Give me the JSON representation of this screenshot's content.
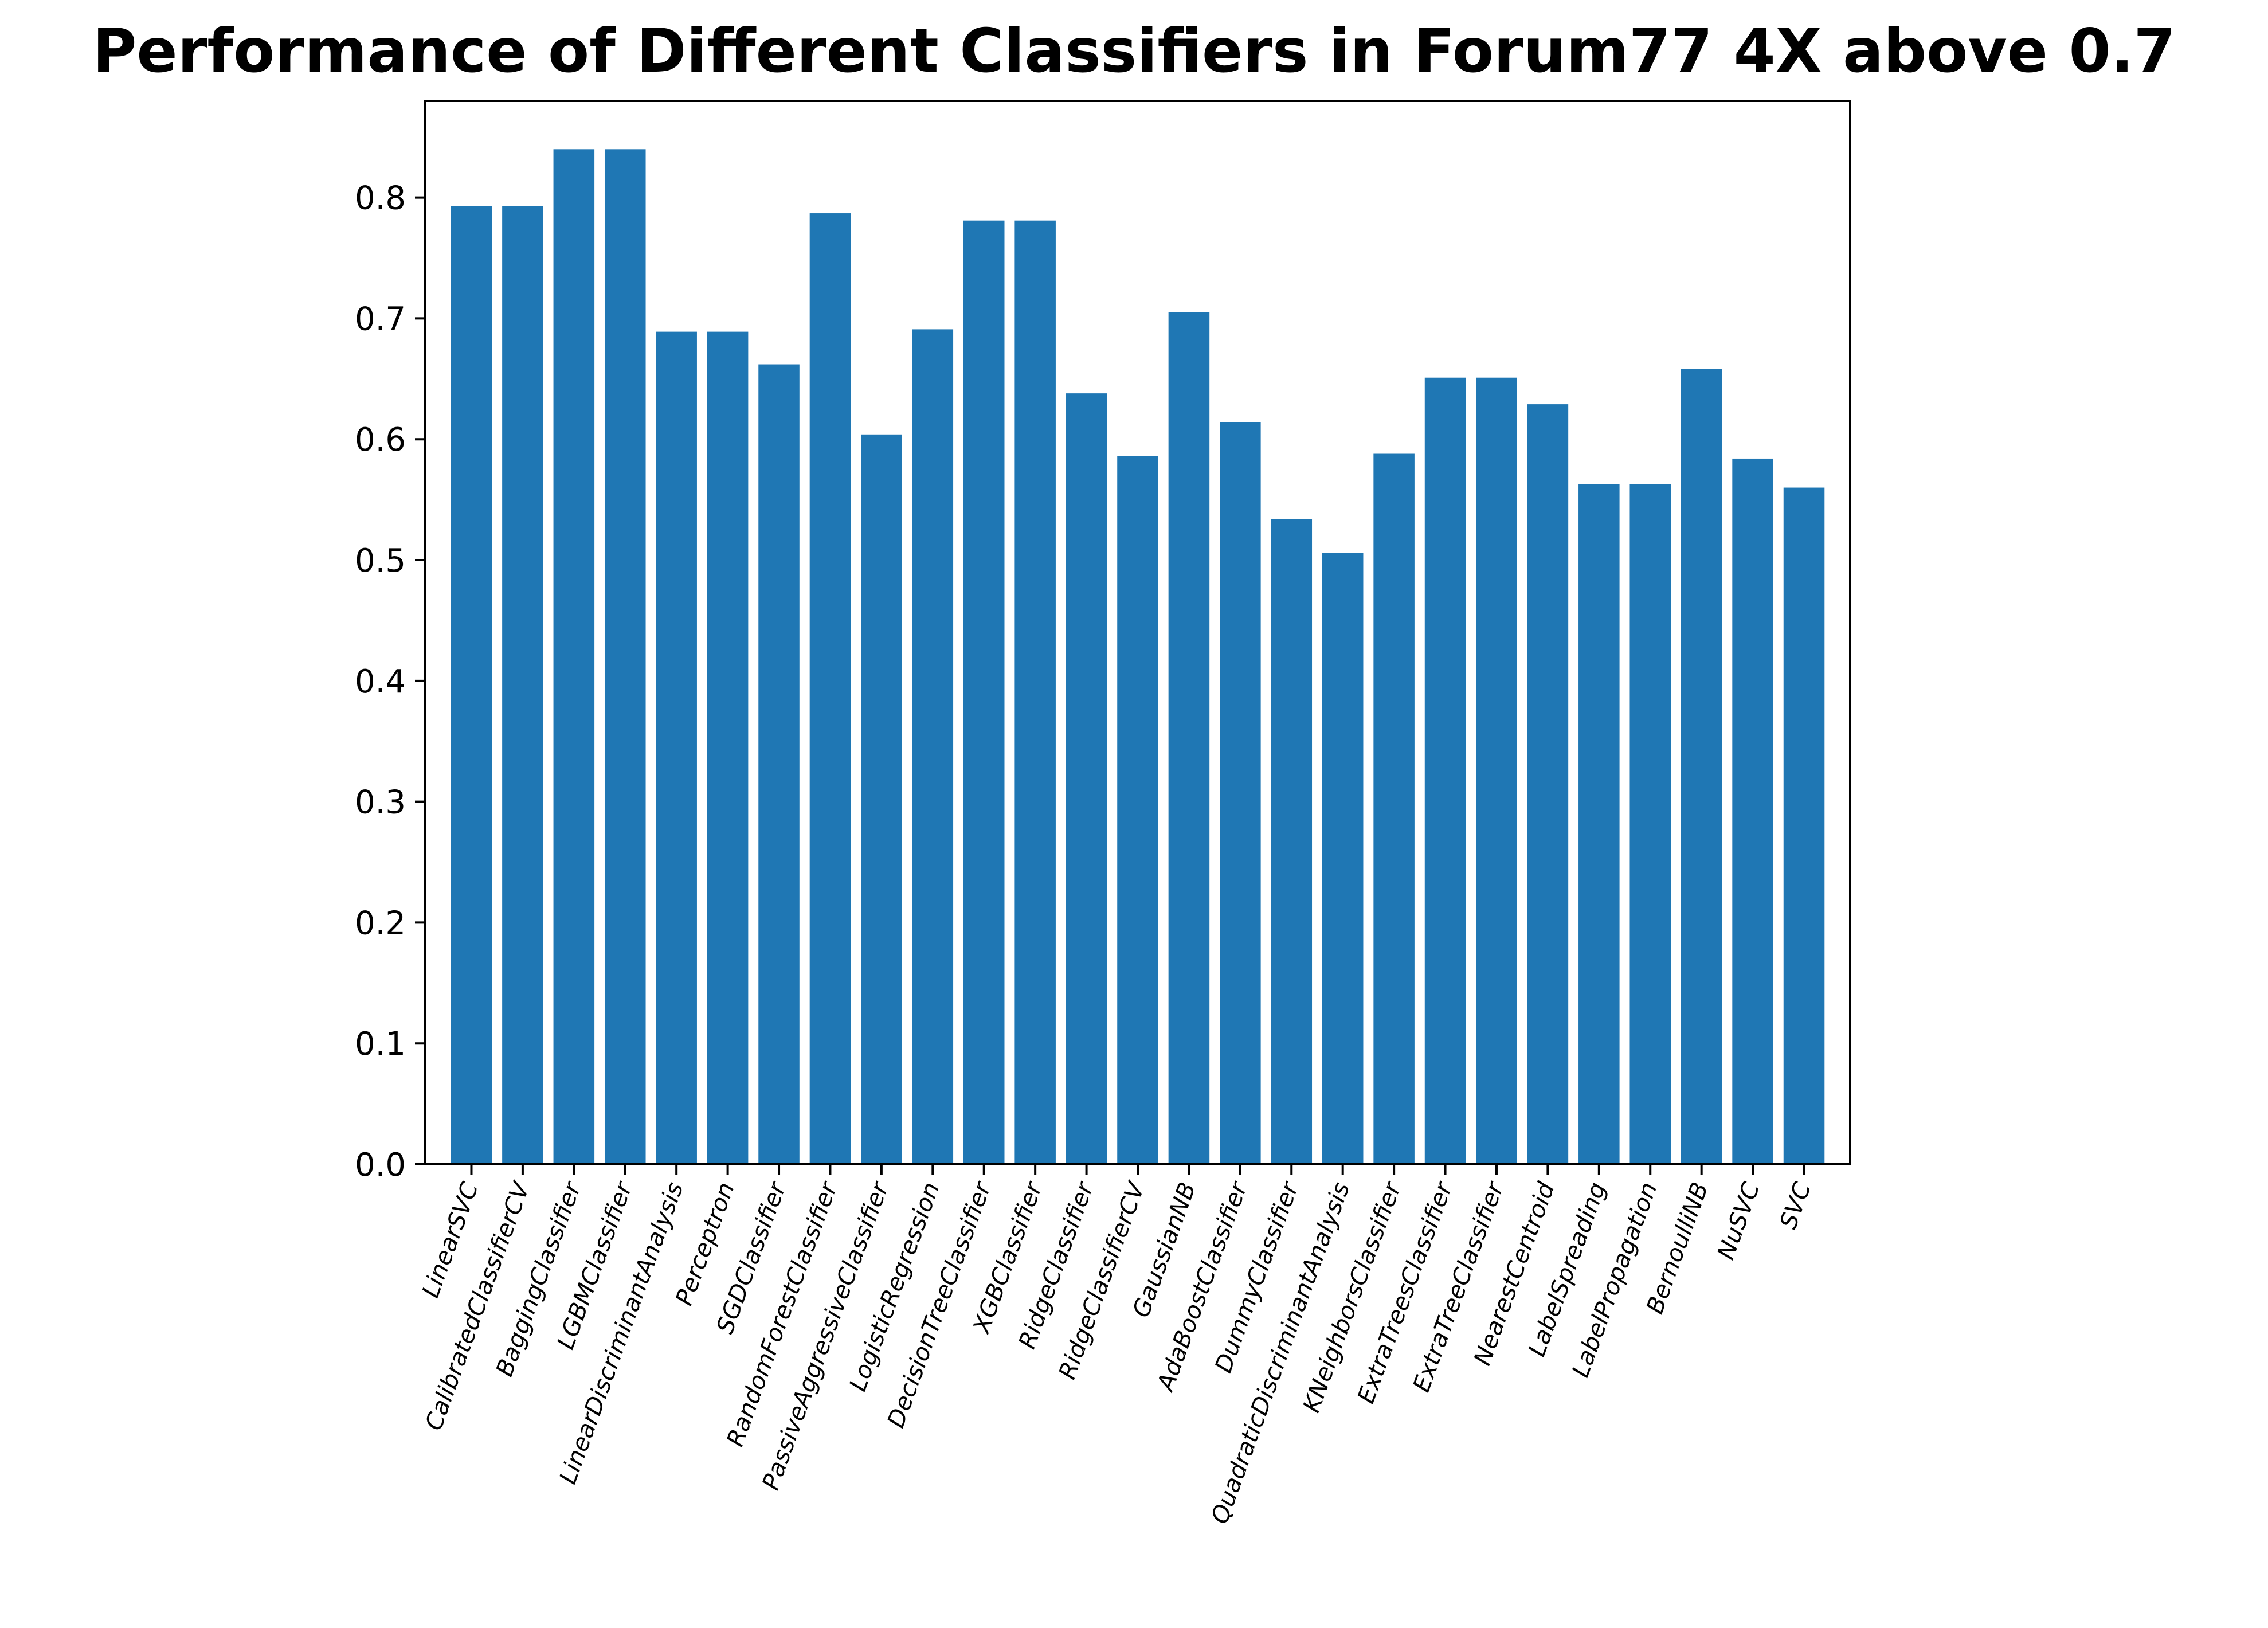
{
  "chart_data": {
    "type": "bar",
    "title": "Performance of Different Classifiers in Forum77 4X above 0.7",
    "xlabel": "",
    "ylabel": "",
    "ylim": [
      0,
      0.88
    ],
    "yticks": [
      0.0,
      0.1,
      0.2,
      0.3,
      0.4,
      0.5,
      0.6,
      0.7,
      0.8
    ],
    "ytick_labels": [
      "0.0",
      "0.1",
      "0.2",
      "0.3",
      "0.4",
      "0.5",
      "0.6",
      "0.7",
      "0.8"
    ],
    "grid": false,
    "bar_color": "#1f77b4",
    "categories": [
      "LinearSVC",
      "CalibratedClassifierCV",
      "BaggingClassifier",
      "LGBMClassifier",
      "LinearDiscriminantAnalysis",
      "Perceptron",
      "SGDClassifier",
      "RandomForestClassifier",
      "PassiveAggressiveClassifier",
      "LogisticRegression",
      "DecisionTreeClassifier",
      "XGBClassifier",
      "RidgeClassifier",
      "RidgeClassifierCV",
      "GaussianNB",
      "AdaBoostClassifier",
      "DummyClassifier",
      "QuadraticDiscriminantAnalysis",
      "KNeighborsClassifier",
      "ExtraTreesClassifier",
      "ExtraTreeClassifier",
      "NearestCentroid",
      "LabelSpreading",
      "LabelPropagation",
      "BernoulliNB",
      "NuSVC",
      "SVC"
    ],
    "values": [
      0.793,
      0.793,
      0.84,
      0.84,
      0.689,
      0.689,
      0.662,
      0.787,
      0.604,
      0.691,
      0.781,
      0.781,
      0.638,
      0.586,
      0.705,
      0.614,
      0.534,
      0.506,
      0.588,
      0.651,
      0.651,
      0.629,
      0.563,
      0.563,
      0.658,
      0.584,
      0.56
    ]
  }
}
